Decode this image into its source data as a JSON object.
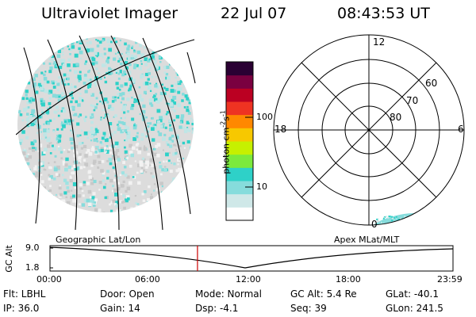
{
  "header": {
    "instrument": "Ultraviolet Imager",
    "date": "22 Jul 07",
    "time": "08:43:53 UT"
  },
  "colorbar": {
    "unit_label": "photon cm",
    "unit_exp1": "-2",
    "unit_mid": "s",
    "unit_exp2": "-1",
    "ticks": [
      "100",
      "10"
    ],
    "colors": [
      "#ffffff",
      "#cfe8e8",
      "#86dcdc",
      "#2ed1c8",
      "#7cea3c",
      "#c6f000",
      "#f7c800",
      "#ff8800",
      "#ee3322",
      "#bb0022",
      "#7a0040",
      "#2a0033"
    ]
  },
  "polar_plot": {
    "mlt_labels": {
      "top": "12",
      "left": "18",
      "right": "6",
      "bottom": "0"
    },
    "lat_labels": [
      "60",
      "70",
      "80"
    ]
  },
  "timeline": {
    "left_caption": "Geographic Lat/Lon",
    "right_caption": "Apex  MLat/MLT",
    "axis_title": "GC Alt",
    "y_ticks": [
      "9.0",
      "1.8"
    ],
    "x_ticks": [
      "00:00",
      "06:00",
      "12:00",
      "18:00",
      "23:59"
    ],
    "current_time_fraction": 0.366
  },
  "status": {
    "flt": "Flt: LBHL",
    "ip": "IP: 36.0",
    "door": "Door: Open",
    "gain": "Gain: 14",
    "mode": "Mode: Normal",
    "dsp": "Dsp:   -4.1",
    "gc_alt": "GC Alt: 5.4 Re",
    "seq": "Seq: 39",
    "glat": "GLat: -40.1",
    "glon": "GLon: 241.5"
  },
  "colors": {
    "accent_red": "#cc0000",
    "aurora_cyan": "#2ed1c8",
    "background_gray": "#d9d9d9"
  }
}
